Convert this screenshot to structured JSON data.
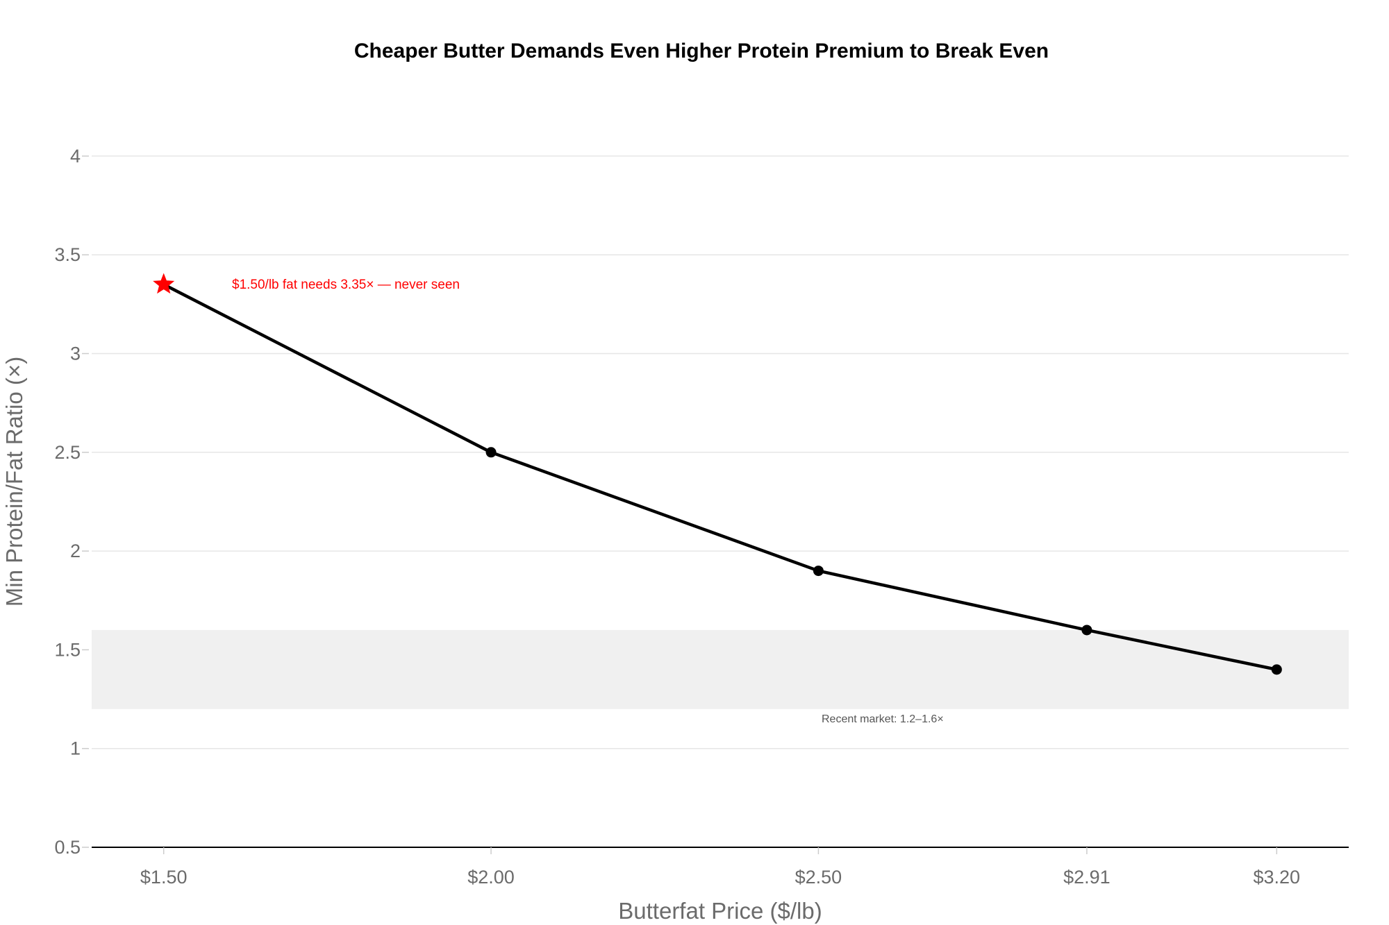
{
  "colors": {
    "line": "#000000",
    "highlight": "#ff0000",
    "band": "#f0f0f0",
    "grid": "#e6e6e6",
    "tick_text": "#6b6b6b"
  },
  "chart_data": {
    "type": "line",
    "title": "Cheaper Butter Demands Even Higher Protein Premium to Break Even",
    "xlabel": "Butterfat Price ($/lb)",
    "ylabel": "Min Protein/Fat Ratio (×)",
    "x": [
      1.5,
      2.0,
      2.5,
      2.91,
      3.2
    ],
    "x_tick_labels": [
      "$1.50",
      "$2.00",
      "$2.50",
      "$2.91",
      "$3.20"
    ],
    "series": [
      {
        "values": [
          3.35,
          2.5,
          1.9,
          1.6,
          1.4
        ],
        "highlight_index": 0,
        "highlight_marker": "star-icon"
      }
    ],
    "xlim": [
      1.39,
      3.31
    ],
    "ylim": [
      0.5,
      4.2
    ],
    "y_ticks": [
      0.5,
      1,
      1.5,
      2,
      2.5,
      3,
      3.5,
      4
    ],
    "y_tick_labels": [
      "0.5",
      "1",
      "1.5",
      "2",
      "2.5",
      "3",
      "3.5",
      "4"
    ],
    "grid": true,
    "band": {
      "y0": 1.2,
      "y1": 1.6,
      "label": "Recent market: 1.2–1.6×"
    },
    "annotations": [
      {
        "text": "$1.50/lb fat needs 3.35× — never seen",
        "x": 1.5,
        "y": 3.35
      }
    ]
  }
}
